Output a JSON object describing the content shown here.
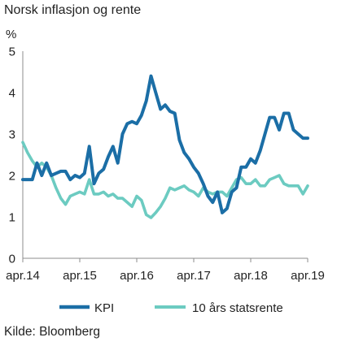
{
  "chart_data": {
    "type": "line",
    "title": "Norsk inflasjon og rente",
    "xlabel": "",
    "ylabel": "%",
    "ylim": [
      0,
      5
    ],
    "xlim": [
      "2014-04",
      "2019-04"
    ],
    "y_ticks": [
      0,
      1,
      2,
      3,
      4,
      5
    ],
    "x_ticks": [
      {
        "x": "2014-04",
        "label": "apr.14"
      },
      {
        "x": "2015-04",
        "label": "apr.15"
      },
      {
        "x": "2016-04",
        "label": "apr.16"
      },
      {
        "x": "2017-04",
        "label": "apr.17"
      },
      {
        "x": "2018-04",
        "label": "apr.18"
      },
      {
        "x": "2019-04",
        "label": "apr.19"
      }
    ],
    "grid": false,
    "legend": "bottom",
    "x": [
      "2014-04",
      "2014-05",
      "2014-06",
      "2014-07",
      "2014-08",
      "2014-09",
      "2014-10",
      "2014-11",
      "2014-12",
      "2015-01",
      "2015-02",
      "2015-03",
      "2015-04",
      "2015-05",
      "2015-06",
      "2015-07",
      "2015-08",
      "2015-09",
      "2015-10",
      "2015-11",
      "2015-12",
      "2016-01",
      "2016-02",
      "2016-03",
      "2016-04",
      "2016-05",
      "2016-06",
      "2016-07",
      "2016-08",
      "2016-09",
      "2016-10",
      "2016-11",
      "2016-12",
      "2017-01",
      "2017-02",
      "2017-03",
      "2017-04",
      "2017-05",
      "2017-06",
      "2017-07",
      "2017-08",
      "2017-09",
      "2017-10",
      "2017-11",
      "2017-12",
      "2018-01",
      "2018-02",
      "2018-03",
      "2018-04",
      "2018-05",
      "2018-06",
      "2018-07",
      "2018-08",
      "2018-09",
      "2018-10",
      "2018-11",
      "2018-12",
      "2019-01",
      "2019-02",
      "2019-03",
      "2019-04"
    ],
    "series": [
      {
        "name": "KPI",
        "color": "#1b6ea6",
        "values": [
          1.9,
          1.9,
          1.9,
          2.3,
          2.0,
          2.3,
          2.0,
          2.05,
          2.1,
          2.1,
          1.9,
          2.0,
          1.95,
          2.05,
          2.7,
          1.8,
          2.05,
          2.15,
          2.45,
          2.7,
          2.3,
          3.0,
          3.25,
          3.3,
          3.25,
          3.45,
          3.8,
          4.4,
          4.0,
          3.6,
          3.7,
          3.55,
          3.5,
          2.85,
          2.55,
          2.4,
          2.2,
          2.05,
          1.8,
          1.5,
          1.35,
          1.6,
          1.1,
          1.2,
          1.6,
          1.7,
          2.2,
          2.2,
          2.4,
          2.3,
          2.6,
          3.0,
          3.4,
          3.4,
          3.1,
          3.5,
          3.5,
          3.1,
          3.0,
          2.9,
          2.9
        ]
      },
      {
        "name": "10 års statsrente",
        "color": "#6ccbc1",
        "values": [
          2.8,
          2.55,
          2.35,
          2.2,
          2.3,
          2.2,
          2.0,
          1.7,
          1.45,
          1.3,
          1.5,
          1.55,
          1.6,
          1.55,
          1.9,
          1.55,
          1.55,
          1.6,
          1.5,
          1.55,
          1.45,
          1.45,
          1.35,
          1.25,
          1.5,
          1.4,
          1.05,
          0.98,
          1.1,
          1.25,
          1.45,
          1.7,
          1.65,
          1.7,
          1.75,
          1.65,
          1.6,
          1.5,
          1.7,
          1.6,
          1.55,
          1.6,
          1.6,
          1.5,
          1.7,
          1.9,
          1.95,
          1.8,
          1.8,
          1.9,
          1.75,
          1.75,
          1.9,
          1.95,
          2.0,
          1.8,
          1.75,
          1.75,
          1.75,
          1.55,
          1.75
        ]
      }
    ]
  },
  "footer": {
    "source": "Kilde: Bloomberg"
  }
}
